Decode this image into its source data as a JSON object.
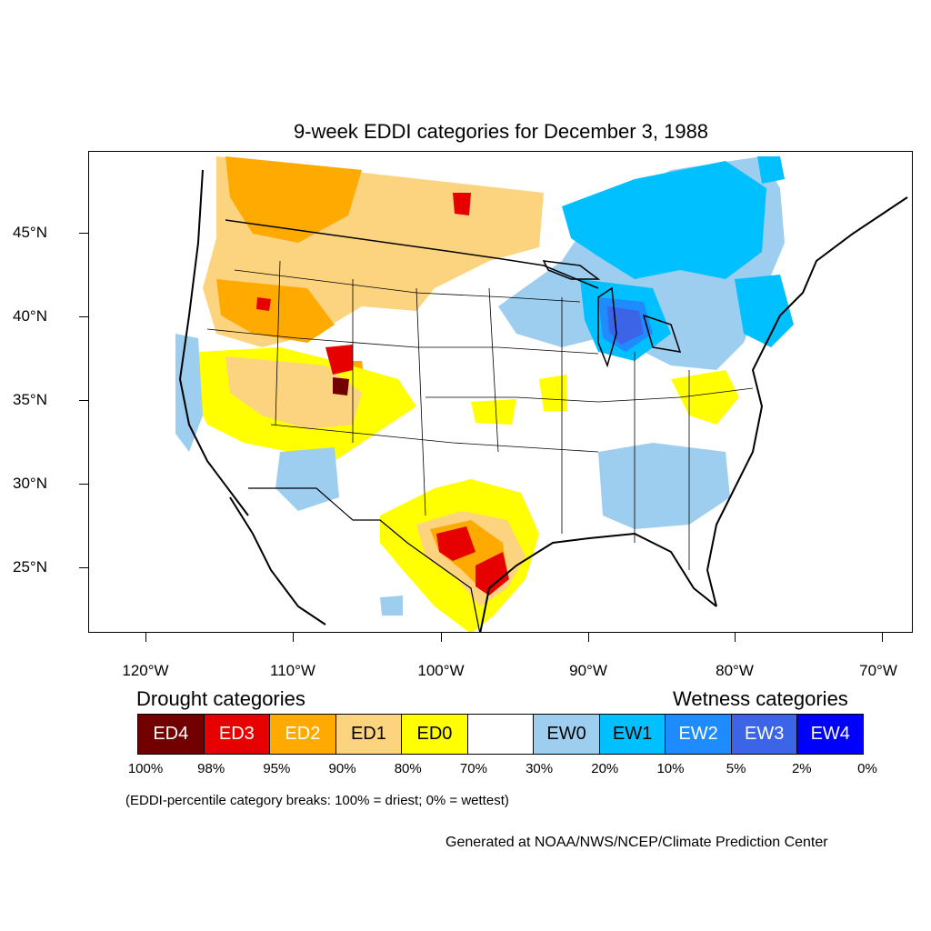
{
  "title": "9-week EDDI categories for December 3, 1988",
  "lat_labels": [
    "45°N",
    "40°N",
    "35°N",
    "30°N",
    "25°N"
  ],
  "lon_labels": [
    "120°W",
    "110°W",
    "100°W",
    "90°W",
    "80°W",
    "70°W"
  ],
  "legend": {
    "drought_heading": "Drought categories",
    "wetness_heading": "Wetness categories",
    "categories": [
      {
        "label": "ED4",
        "color": "#730000",
        "text_color": "#ffffff"
      },
      {
        "label": "ED3",
        "color": "#e60000",
        "text_color": "#ffffff"
      },
      {
        "label": "ED2",
        "color": "#ffaa00",
        "text_color": "#ffffff"
      },
      {
        "label": "ED1",
        "color": "#fcd37f",
        "text_color": "#000000"
      },
      {
        "label": "ED0",
        "color": "#ffff00",
        "text_color": "#000000"
      },
      {
        "label": "",
        "color": "#ffffff",
        "text_color": "#000000"
      },
      {
        "label": "EW0",
        "color": "#9dcef0",
        "text_color": "#000000"
      },
      {
        "label": "EW1",
        "color": "#00c0ff",
        "text_color": "#000000"
      },
      {
        "label": "EW2",
        "color": "#1e8cff",
        "text_color": "#ffffff"
      },
      {
        "label": "EW3",
        "color": "#3c64e6",
        "text_color": "#ffffff"
      },
      {
        "label": "EW4",
        "color": "#0000ff",
        "text_color": "#ffffff"
      }
    ],
    "breaks": [
      "100%",
      "98%",
      "95%",
      "90%",
      "80%",
      "70%",
      "30%",
      "20%",
      "10%",
      "5%",
      "2%",
      "0%"
    ]
  },
  "note": "(EDDI-percentile category breaks: 100% = driest; 0% = wettest)",
  "credit": "Generated at NOAA/NWS/NCEP/Climate Prediction Center"
}
